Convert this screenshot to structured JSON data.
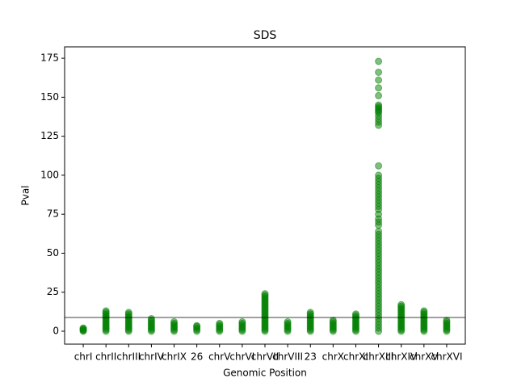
{
  "chart_data": {
    "type": "scatter",
    "title": "SDS",
    "x_label": "Genomic Position",
    "y_label": "Pval",
    "categories": [
      "chrI",
      "chrII",
      "chrIII",
      "chrIV",
      "chrIX",
      "26",
      "chrV",
      "chrVI",
      "chrVII",
      "chrVIII",
      "23",
      "chrX",
      "chrXI",
      "chrXIII",
      "chrXIV",
      "chrXV",
      "chrXVI"
    ],
    "color": "#008000",
    "values": [
      [
        0,
        0.5,
        1,
        1.5,
        2
      ],
      [
        0,
        1,
        2,
        3,
        4,
        5,
        6,
        7,
        8,
        9,
        10,
        11,
        12,
        13
      ],
      [
        0,
        1,
        2,
        3,
        4,
        5,
        6,
        7,
        8,
        9,
        10,
        11,
        12
      ],
      [
        0,
        1,
        2,
        3,
        4,
        5,
        6,
        7,
        8
      ],
      [
        0,
        1,
        2,
        3,
        4,
        5,
        6
      ],
      [
        0,
        1,
        2,
        3,
        3.5
      ],
      [
        0,
        1,
        2,
        3,
        4,
        5
      ],
      [
        0,
        1,
        2,
        3,
        4,
        5,
        6
      ],
      [
        0,
        1,
        2,
        3,
        4,
        5,
        6,
        7,
        8,
        9,
        10,
        11,
        12,
        13,
        14,
        15,
        16,
        17,
        18,
        19,
        20,
        21,
        22,
        23,
        24
      ],
      [
        0,
        1,
        2,
        3,
        4,
        5,
        6
      ],
      [
        0,
        1,
        2,
        3,
        4,
        5,
        6,
        7,
        8,
        9,
        10,
        11,
        12
      ],
      [
        0,
        1,
        2,
        3,
        4,
        5,
        6,
        7
      ],
      [
        0,
        1,
        2,
        3,
        4,
        5,
        6,
        7,
        8,
        9,
        10,
        11
      ],
      [
        0,
        2,
        4,
        6,
        8,
        10,
        12,
        14,
        16,
        18,
        20,
        22,
        24,
        26,
        28,
        30,
        32,
        34,
        36,
        38,
        40,
        42,
        44,
        46,
        48,
        50,
        52,
        54,
        56,
        58,
        60,
        62,
        64,
        68,
        70,
        72,
        75,
        78,
        80,
        82,
        84,
        86,
        88,
        90,
        92,
        94,
        96,
        98,
        100,
        106,
        132,
        134,
        136,
        138,
        140,
        141,
        142,
        143,
        144,
        145,
        151,
        156,
        161,
        166,
        173
      ],
      [
        0,
        1,
        2,
        3,
        4,
        5,
        6,
        7,
        8,
        9,
        10,
        11,
        12,
        13,
        14,
        15,
        16,
        17
      ],
      [
        0,
        1,
        2,
        3,
        4,
        5,
        6,
        7,
        8,
        9,
        10,
        11,
        12,
        13
      ],
      [
        0,
        1,
        2,
        3,
        4,
        5,
        6,
        7
      ]
    ],
    "threshold": 8.8,
    "ylim": [
      -8.3,
      182.3
    ],
    "yticks": [
      0,
      25,
      50,
      75,
      100,
      125,
      150,
      175
    ]
  }
}
